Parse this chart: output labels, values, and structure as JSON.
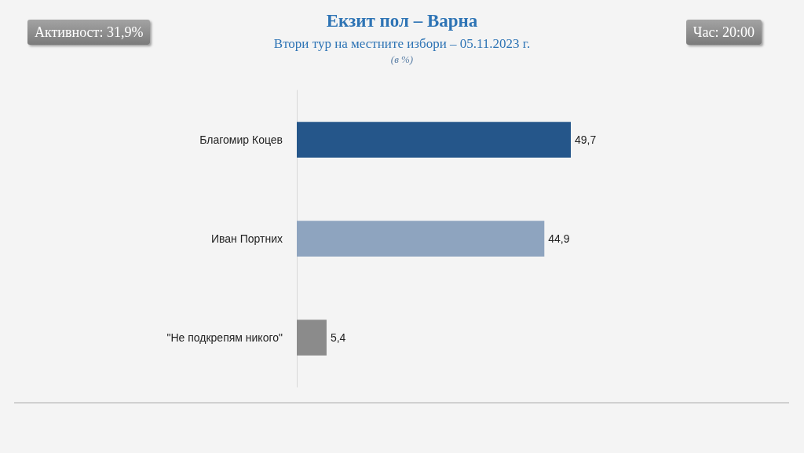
{
  "chart_data": {
    "type": "bar",
    "orientation": "horizontal",
    "title": "Екзит пол – Варна",
    "subtitle": "Втори тур на местните избори – 05.11.2023 г.",
    "annotations": [
      "Активност: 31,9%",
      "Час: 20:00",
      "(в %)"
    ],
    "categories": [
      "Благомир Коцев",
      "Иван Портних",
      "\"Не подкрепям никого\""
    ],
    "values": [
      49.7,
      44.9,
      5.4
    ],
    "colors": [
      "#25568a",
      "#8ea4bf",
      "#8b8b8b"
    ],
    "value_labels": [
      "49,7",
      "44,9",
      "5,4"
    ]
  }
}
